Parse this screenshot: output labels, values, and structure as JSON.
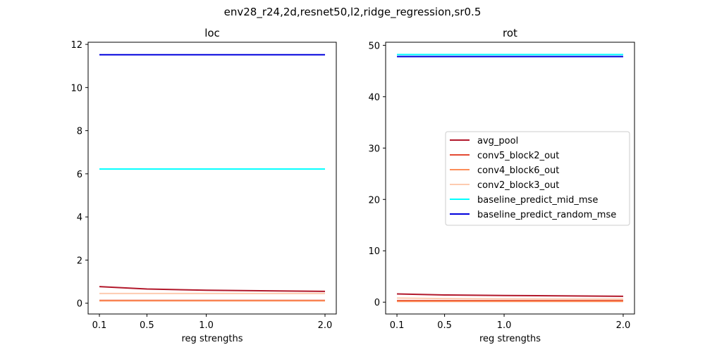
{
  "chart_data": {
    "suptitle": "env28_r24,2d,resnet50,l2,ridge_regression,sr0.5",
    "x": [
      0.1,
      0.5,
      1.0,
      2.0
    ],
    "x_ticks": [
      0.1,
      0.5,
      1.0,
      2.0
    ],
    "x_tick_labels": [
      "0.1",
      "0.5",
      "1.0",
      "2.0"
    ],
    "xlim": [
      0.005,
      2.095
    ],
    "legend_location": "center-right",
    "series_styles": [
      {
        "name": "avg_pool",
        "color": "#b2182b"
      },
      {
        "name": "conv5_block2_out",
        "color": "#e34a33"
      },
      {
        "name": "conv4_block6_out",
        "color": "#fc8d59"
      },
      {
        "name": "conv2_block3_out",
        "color": "#fdcbb0"
      },
      {
        "name": "baseline_predict_mid_mse",
        "color": "#00ffff"
      },
      {
        "name": "baseline_predict_random_mse",
        "color": "#0000dd"
      }
    ],
    "charts": [
      {
        "type": "line",
        "title": "loc",
        "xlabel": "reg strengths",
        "ylabel": "",
        "ylim": [
          -0.5,
          12.1
        ],
        "y_ticks": [
          0,
          2,
          4,
          6,
          8,
          10,
          12
        ],
        "y_tick_labels": [
          "0",
          "2",
          "4",
          "6",
          "8",
          "10",
          "12"
        ],
        "show_legend": false,
        "series": [
          {
            "name": "avg_pool",
            "values": [
              0.77,
              0.66,
              0.6,
              0.55
            ]
          },
          {
            "name": "conv5_block2_out",
            "values": [
              0.13,
              0.13,
              0.13,
              0.13
            ]
          },
          {
            "name": "conv4_block6_out",
            "values": [
              0.11,
              0.11,
              0.11,
              0.11
            ]
          },
          {
            "name": "conv2_block3_out",
            "values": [
              0.45,
              0.45,
              0.45,
              0.45
            ]
          },
          {
            "name": "baseline_predict_mid_mse",
            "values": [
              6.22,
              6.22,
              6.22,
              6.22
            ]
          },
          {
            "name": "baseline_predict_random_mse",
            "values": [
              11.52,
              11.52,
              11.52,
              11.52
            ]
          }
        ]
      },
      {
        "type": "line",
        "title": "rot",
        "xlabel": "reg strengths",
        "ylabel": "",
        "ylim": [
          -2.3,
          50.6
        ],
        "y_ticks": [
          0,
          10,
          20,
          30,
          40,
          50
        ],
        "y_tick_labels": [
          "0",
          "10",
          "20",
          "30",
          "40",
          "50"
        ],
        "show_legend": true,
        "series": [
          {
            "name": "avg_pool",
            "values": [
              1.6,
              1.4,
              1.3,
              1.15
            ]
          },
          {
            "name": "conv5_block2_out",
            "values": [
              0.3,
              0.3,
              0.3,
              0.3
            ]
          },
          {
            "name": "conv4_block6_out",
            "values": [
              0.15,
              0.15,
              0.15,
              0.15
            ]
          },
          {
            "name": "conv2_block3_out",
            "values": [
              0.8,
              0.7,
              0.65,
              0.6
            ]
          },
          {
            "name": "baseline_predict_mid_mse",
            "values": [
              48.2,
              48.2,
              48.2,
              48.2
            ]
          },
          {
            "name": "baseline_predict_random_mse",
            "values": [
              47.8,
              47.8,
              47.8,
              47.8
            ]
          }
        ]
      }
    ]
  }
}
